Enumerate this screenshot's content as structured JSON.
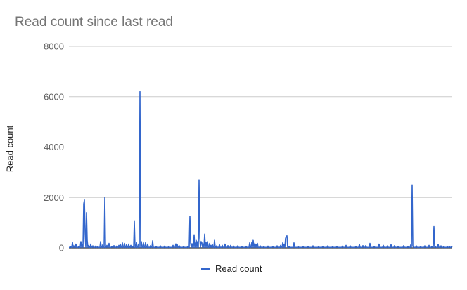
{
  "chart_data": {
    "type": "line",
    "title": "Read count since last read",
    "xlabel": "",
    "ylabel": "Read count",
    "ylim": [
      0,
      8000
    ],
    "yticks": [
      "0",
      "2000",
      "4000",
      "6000",
      "8000"
    ],
    "grid": true,
    "legend": "bottom",
    "color": "#3366cc",
    "series": [
      {
        "name": "Read count",
        "spikes": [
          [
            2,
            60
          ],
          [
            5,
            220
          ],
          [
            7,
            80
          ],
          [
            10,
            150
          ],
          [
            14,
            60
          ],
          [
            17,
            250
          ],
          [
            19,
            120
          ],
          [
            21,
            1750
          ],
          [
            22,
            1900
          ],
          [
            23,
            600
          ],
          [
            25,
            1400
          ],
          [
            26,
            300
          ],
          [
            28,
            90
          ],
          [
            31,
            150
          ],
          [
            34,
            80
          ],
          [
            38,
            70
          ],
          [
            41,
            60
          ],
          [
            45,
            250
          ],
          [
            48,
            120
          ],
          [
            51,
            2000
          ],
          [
            54,
            100
          ],
          [
            57,
            180
          ],
          [
            61,
            60
          ],
          [
            64,
            90
          ],
          [
            68,
            70
          ],
          [
            71,
            100
          ],
          [
            73,
            150
          ],
          [
            76,
            200
          ],
          [
            79,
            180
          ],
          [
            82,
            140
          ],
          [
            85,
            150
          ],
          [
            88,
            100
          ],
          [
            91,
            60
          ],
          [
            93,
            1050
          ],
          [
            96,
            230
          ],
          [
            99,
            150
          ],
          [
            101,
            6200
          ],
          [
            103,
            250
          ],
          [
            106,
            200
          ],
          [
            109,
            210
          ],
          [
            112,
            150
          ],
          [
            116,
            90
          ],
          [
            119,
            280
          ],
          [
            124,
            60
          ],
          [
            130,
            80
          ],
          [
            136,
            70
          ],
          [
            142,
            60
          ],
          [
            148,
            100
          ],
          [
            152,
            160
          ],
          [
            154,
            130
          ],
          [
            157,
            80
          ],
          [
            163,
            60
          ],
          [
            169,
            60
          ],
          [
            172,
            1250
          ],
          [
            173,
            200
          ],
          [
            175,
            170
          ],
          [
            178,
            520
          ],
          [
            180,
            150
          ],
          [
            181,
            300
          ],
          [
            183,
            250
          ],
          [
            185,
            2700
          ],
          [
            186,
            400
          ],
          [
            188,
            250
          ],
          [
            189,
            200
          ],
          [
            191,
            160
          ],
          [
            193,
            550
          ],
          [
            195,
            230
          ],
          [
            197,
            250
          ],
          [
            200,
            180
          ],
          [
            202,
            100
          ],
          [
            204,
            130
          ],
          [
            207,
            300
          ],
          [
            210,
            80
          ],
          [
            214,
            130
          ],
          [
            218,
            100
          ],
          [
            222,
            150
          ],
          [
            226,
            90
          ],
          [
            230,
            100
          ],
          [
            234,
            70
          ],
          [
            240,
            80
          ],
          [
            246,
            60
          ],
          [
            252,
            60
          ],
          [
            257,
            200
          ],
          [
            260,
            220
          ],
          [
            262,
            300
          ],
          [
            264,
            160
          ],
          [
            266,
            150
          ],
          [
            268,
            180
          ],
          [
            272,
            80
          ],
          [
            277,
            60
          ],
          [
            283,
            70
          ],
          [
            290,
            60
          ],
          [
            296,
            80
          ],
          [
            301,
            100
          ],
          [
            304,
            200
          ],
          [
            306,
            150
          ],
          [
            308,
            380
          ],
          [
            309,
            450
          ],
          [
            310,
            480
          ],
          [
            313,
            60
          ],
          [
            320,
            200
          ],
          [
            326,
            60
          ],
          [
            333,
            50
          ],
          [
            340,
            60
          ],
          [
            347,
            80
          ],
          [
            355,
            50
          ],
          [
            361,
            60
          ],
          [
            368,
            80
          ],
          [
            375,
            60
          ],
          [
            381,
            60
          ],
          [
            389,
            70
          ],
          [
            394,
            100
          ],
          [
            400,
            80
          ],
          [
            408,
            60
          ],
          [
            413,
            140
          ],
          [
            418,
            90
          ],
          [
            422,
            90
          ],
          [
            428,
            180
          ],
          [
            434,
            60
          ],
          [
            441,
            150
          ],
          [
            447,
            100
          ],
          [
            453,
            80
          ],
          [
            458,
            130
          ],
          [
            463,
            90
          ],
          [
            468,
            60
          ],
          [
            476,
            90
          ],
          [
            482,
            50
          ],
          [
            486,
            120
          ],
          [
            488,
            2500
          ],
          [
            489,
            60
          ],
          [
            494,
            80
          ],
          [
            500,
            60
          ],
          [
            506,
            80
          ],
          [
            512,
            100
          ],
          [
            516,
            60
          ],
          [
            519,
            850
          ],
          [
            521,
            60
          ],
          [
            525,
            140
          ],
          [
            529,
            80
          ],
          [
            533,
            60
          ],
          [
            538,
            50
          ],
          [
            541,
            60
          ],
          [
            544,
            50
          ]
        ]
      }
    ]
  }
}
